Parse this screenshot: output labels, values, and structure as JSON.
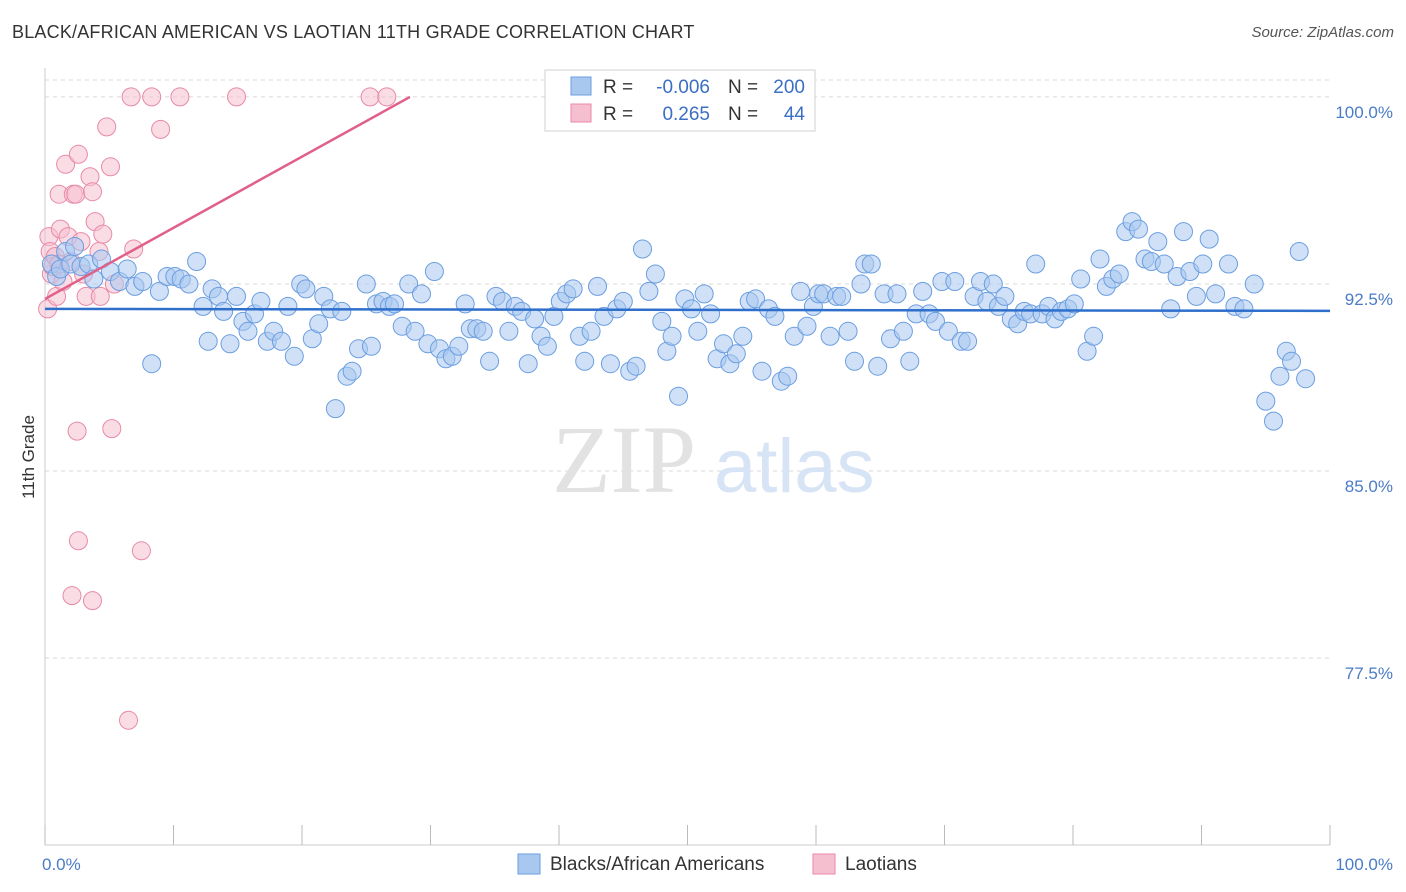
{
  "title": "BLACK/AFRICAN AMERICAN VS LAOTIAN 11TH GRADE CORRELATION CHART",
  "source": "Source: ZipAtlas.com",
  "watermark": {
    "zip": "ZIP",
    "atlas": "atlas"
  },
  "legend": {
    "rows": [
      {
        "r_label": "R =",
        "r_value": "-0.006",
        "n_label": "N =",
        "n_value": "200"
      },
      {
        "r_label": "R =",
        "r_value": "0.265",
        "n_label": "N =",
        "n_value": "44"
      }
    ]
  },
  "bottom_legend": [
    "Blacks/African Americans",
    "Laotians"
  ],
  "colors": {
    "blue_fill": "#a9c8f0",
    "blue_stroke": "#6b9ee0",
    "blue_line": "#2f6fcc",
    "pink_fill": "#f6bfd0",
    "pink_stroke": "#e88aa8",
    "pink_line": "#e0608a",
    "grid": "#d8d8d8",
    "tick_text": "#4a7cc7"
  },
  "chart_data": {
    "type": "scatter",
    "xlabel": "",
    "ylabel": "11th Grade",
    "xlim": [
      0,
      100
    ],
    "ylim": [
      70.0,
      101.0
    ],
    "x_tick_labels": [
      "0.0%",
      "100.0%"
    ],
    "y_ticks": [
      77.5,
      85.0,
      92.5,
      100.0
    ],
    "y_tick_labels": [
      "77.5%",
      "85.0%",
      "92.5%",
      "100.0%"
    ],
    "grid": "horizontal-dashed",
    "legend_position": "top-center",
    "series": [
      {
        "name": "Blacks/African Americans",
        "trend": {
          "x": [
            0,
            100
          ],
          "y": [
            91.5,
            91.42
          ]
        },
        "points": [
          [
            0.5,
            93.3
          ],
          [
            0.9,
            92.8
          ],
          [
            1.2,
            93.1
          ],
          [
            1.6,
            93.8
          ],
          [
            2.0,
            93.3
          ],
          [
            2.3,
            94.0
          ],
          [
            2.8,
            93.2
          ],
          [
            3.4,
            93.3
          ],
          [
            3.8,
            92.7
          ],
          [
            4.4,
            93.5
          ],
          [
            5.1,
            93.0
          ],
          [
            5.8,
            92.6
          ],
          [
            6.4,
            93.1
          ],
          [
            7.0,
            92.4
          ],
          [
            7.6,
            92.6
          ],
          [
            8.3,
            89.3
          ],
          [
            8.9,
            92.2
          ],
          [
            9.5,
            92.8
          ],
          [
            10.1,
            92.8
          ],
          [
            10.6,
            92.7
          ],
          [
            11.2,
            92.5
          ],
          [
            11.8,
            93.4
          ],
          [
            12.3,
            91.6
          ],
          [
            12.7,
            90.2
          ],
          [
            13.0,
            92.3
          ],
          [
            13.5,
            92.0
          ],
          [
            13.9,
            91.4
          ],
          [
            14.4,
            90.1
          ],
          [
            14.9,
            92.0
          ],
          [
            15.4,
            91.0
          ],
          [
            15.8,
            90.6
          ],
          [
            16.3,
            91.3
          ],
          [
            16.8,
            91.8
          ],
          [
            17.3,
            90.2
          ],
          [
            17.8,
            90.6
          ],
          [
            18.4,
            90.2
          ],
          [
            18.9,
            91.6
          ],
          [
            19.4,
            89.6
          ],
          [
            19.9,
            92.5
          ],
          [
            20.3,
            92.3
          ],
          [
            20.8,
            90.3
          ],
          [
            21.3,
            90.9
          ],
          [
            21.7,
            92.0
          ],
          [
            22.2,
            91.5
          ],
          [
            22.6,
            87.5
          ],
          [
            23.1,
            91.4
          ],
          [
            23.5,
            88.8
          ],
          [
            23.9,
            89.0
          ],
          [
            24.4,
            89.9
          ],
          [
            25.0,
            92.5
          ],
          [
            25.4,
            90.0
          ],
          [
            25.8,
            91.7
          ],
          [
            26.3,
            91.8
          ],
          [
            26.8,
            91.6
          ],
          [
            27.2,
            91.7
          ],
          [
            27.8,
            90.8
          ],
          [
            28.3,
            92.5
          ],
          [
            28.8,
            90.6
          ],
          [
            29.3,
            92.1
          ],
          [
            29.8,
            90.1
          ],
          [
            30.3,
            93.0
          ],
          [
            30.7,
            89.9
          ],
          [
            31.2,
            89.5
          ],
          [
            31.7,
            89.6
          ],
          [
            32.2,
            90.0
          ],
          [
            32.7,
            91.7
          ],
          [
            33.1,
            90.7
          ],
          [
            33.6,
            90.7
          ],
          [
            34.1,
            90.6
          ],
          [
            34.6,
            89.4
          ],
          [
            35.1,
            92.0
          ],
          [
            35.6,
            91.8
          ],
          [
            36.1,
            90.6
          ],
          [
            36.6,
            91.6
          ],
          [
            37.1,
            91.4
          ],
          [
            37.6,
            89.3
          ],
          [
            38.1,
            91.1
          ],
          [
            38.6,
            90.4
          ],
          [
            39.1,
            90.0
          ],
          [
            39.6,
            91.2
          ],
          [
            40.1,
            91.8
          ],
          [
            40.6,
            92.1
          ],
          [
            41.1,
            92.3
          ],
          [
            41.6,
            90.4
          ],
          [
            42.0,
            89.4
          ],
          [
            42.5,
            90.6
          ],
          [
            43.0,
            92.4
          ],
          [
            43.5,
            91.2
          ],
          [
            44.0,
            89.3
          ],
          [
            44.5,
            91.5
          ],
          [
            45.0,
            91.8
          ],
          [
            45.5,
            89.0
          ],
          [
            46.0,
            89.2
          ],
          [
            46.5,
            93.9
          ],
          [
            47.0,
            92.2
          ],
          [
            47.5,
            92.9
          ],
          [
            48.0,
            91.0
          ],
          [
            48.4,
            89.8
          ],
          [
            48.8,
            90.4
          ],
          [
            49.3,
            88.0
          ],
          [
            49.8,
            91.9
          ],
          [
            50.3,
            91.5
          ],
          [
            50.8,
            90.6
          ],
          [
            51.3,
            92.1
          ],
          [
            51.8,
            91.3
          ],
          [
            52.3,
            89.5
          ],
          [
            52.8,
            90.1
          ],
          [
            53.3,
            89.3
          ],
          [
            53.8,
            89.7
          ],
          [
            54.3,
            90.4
          ],
          [
            54.8,
            91.8
          ],
          [
            55.3,
            91.9
          ],
          [
            55.8,
            89.0
          ],
          [
            56.3,
            91.5
          ],
          [
            56.8,
            91.2
          ],
          [
            57.3,
            88.6
          ],
          [
            57.8,
            88.8
          ],
          [
            58.3,
            90.4
          ],
          [
            58.8,
            92.2
          ],
          [
            59.3,
            90.8
          ],
          [
            59.8,
            91.6
          ],
          [
            60.2,
            92.1
          ],
          [
            60.6,
            92.1
          ],
          [
            61.1,
            90.4
          ],
          [
            61.6,
            92.0
          ],
          [
            62.0,
            92.0
          ],
          [
            62.5,
            90.6
          ],
          [
            63.0,
            89.4
          ],
          [
            63.5,
            92.5
          ],
          [
            63.8,
            93.3
          ],
          [
            64.3,
            93.3
          ],
          [
            64.8,
            89.2
          ],
          [
            65.3,
            92.1
          ],
          [
            65.8,
            90.3
          ],
          [
            66.3,
            92.1
          ],
          [
            66.8,
            90.6
          ],
          [
            67.3,
            89.4
          ],
          [
            67.8,
            91.3
          ],
          [
            68.3,
            92.2
          ],
          [
            68.8,
            91.3
          ],
          [
            69.3,
            91.0
          ],
          [
            69.8,
            92.6
          ],
          [
            70.3,
            90.6
          ],
          [
            70.8,
            92.6
          ],
          [
            71.3,
            90.2
          ],
          [
            71.8,
            90.2
          ],
          [
            72.3,
            92.0
          ],
          [
            72.8,
            92.6
          ],
          [
            73.3,
            91.8
          ],
          [
            73.8,
            92.5
          ],
          [
            74.2,
            91.6
          ],
          [
            74.7,
            92.0
          ],
          [
            75.2,
            91.1
          ],
          [
            75.7,
            90.9
          ],
          [
            76.2,
            91.4
          ],
          [
            76.7,
            91.3
          ],
          [
            77.1,
            93.3
          ],
          [
            77.6,
            91.3
          ],
          [
            78.1,
            91.6
          ],
          [
            78.6,
            91.1
          ],
          [
            79.1,
            91.4
          ],
          [
            79.6,
            91.5
          ],
          [
            80.1,
            91.7
          ],
          [
            80.6,
            92.7
          ],
          [
            81.1,
            89.8
          ],
          [
            81.6,
            90.4
          ],
          [
            82.1,
            93.5
          ],
          [
            82.6,
            92.4
          ],
          [
            83.1,
            92.7
          ],
          [
            83.6,
            92.9
          ],
          [
            84.1,
            94.6
          ],
          [
            84.6,
            95.0
          ],
          [
            85.1,
            94.7
          ],
          [
            85.6,
            93.5
          ],
          [
            86.1,
            93.4
          ],
          [
            86.6,
            94.2
          ],
          [
            87.1,
            93.3
          ],
          [
            87.6,
            91.5
          ],
          [
            88.1,
            92.8
          ],
          [
            88.6,
            94.6
          ],
          [
            89.1,
            93.0
          ],
          [
            89.6,
            92.0
          ],
          [
            90.1,
            93.3
          ],
          [
            90.6,
            94.3
          ],
          [
            91.1,
            92.1
          ],
          [
            92.1,
            93.3
          ],
          [
            92.6,
            91.6
          ],
          [
            93.3,
            91.5
          ],
          [
            94.1,
            92.5
          ],
          [
            95.0,
            87.8
          ],
          [
            95.6,
            87.0
          ],
          [
            96.1,
            88.8
          ],
          [
            96.6,
            89.8
          ],
          [
            97.0,
            89.4
          ],
          [
            97.6,
            93.8
          ],
          [
            98.1,
            88.7
          ]
        ]
      },
      {
        "name": "Laotians",
        "trend": {
          "x": [
            0,
            28.4
          ],
          "y": [
            91.9,
            100.0
          ]
        },
        "points": [
          [
            0.2,
            91.5
          ],
          [
            0.3,
            94.4
          ],
          [
            0.4,
            93.8
          ],
          [
            0.5,
            92.9
          ],
          [
            0.6,
            93.2
          ],
          [
            0.8,
            93.6
          ],
          [
            0.9,
            92.0
          ],
          [
            1.1,
            96.1
          ],
          [
            1.2,
            94.7
          ],
          [
            1.4,
            92.6
          ],
          [
            1.6,
            97.3
          ],
          [
            1.8,
            94.4
          ],
          [
            2.0,
            93.4
          ],
          [
            2.2,
            96.1
          ],
          [
            2.4,
            96.1
          ],
          [
            2.6,
            97.7
          ],
          [
            2.8,
            94.2
          ],
          [
            3.0,
            92.9
          ],
          [
            3.2,
            92.0
          ],
          [
            3.5,
            96.8
          ],
          [
            3.7,
            96.2
          ],
          [
            3.9,
            95.0
          ],
          [
            4.2,
            93.8
          ],
          [
            4.5,
            94.5
          ],
          [
            4.8,
            98.8
          ],
          [
            5.1,
            97.2
          ],
          [
            5.4,
            92.5
          ],
          [
            6.7,
            100.0
          ],
          [
            8.3,
            100.0
          ],
          [
            9.0,
            98.7
          ],
          [
            10.5,
            100.0
          ],
          [
            14.9,
            100.0
          ],
          [
            25.3,
            100.0
          ],
          [
            26.6,
            100.0
          ],
          [
            2.5,
            86.6
          ],
          [
            5.2,
            86.7
          ],
          [
            2.6,
            82.2
          ],
          [
            7.5,
            81.8
          ],
          [
            2.1,
            80.0
          ],
          [
            3.7,
            79.8
          ],
          [
            6.5,
            75.0
          ],
          [
            1.1,
            93.3
          ],
          [
            4.3,
            92.0
          ],
          [
            6.9,
            93.9
          ]
        ]
      }
    ]
  }
}
